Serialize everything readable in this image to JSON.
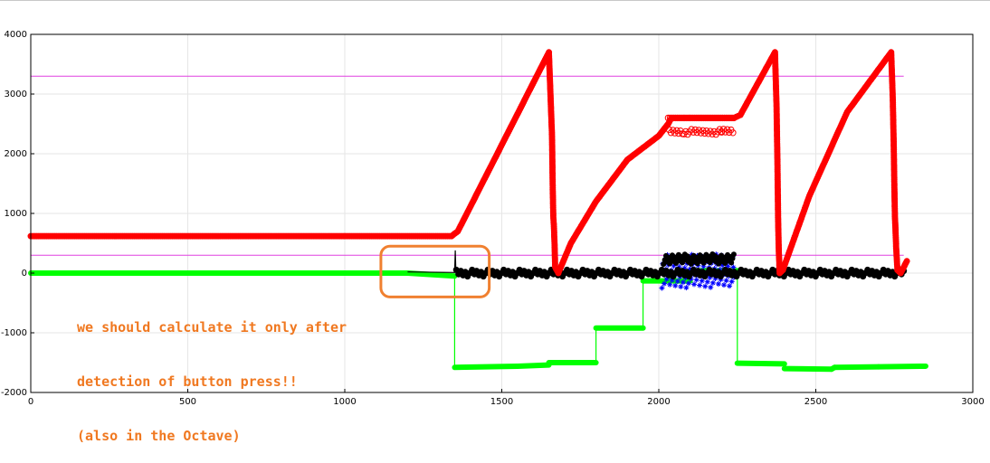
{
  "chart_data": {
    "type": "line",
    "title": "",
    "xlabel": "",
    "ylabel": "",
    "xlim": [
      0,
      3000
    ],
    "ylim": [
      -2000,
      4000
    ],
    "xticks": [
      "0",
      "500",
      "1000",
      "1500",
      "2000",
      "2500",
      "3000"
    ],
    "yticks": [
      "4000",
      "3000",
      "2000",
      "1000",
      "0",
      "-1000",
      "-2000"
    ],
    "grid": true,
    "legend": "none",
    "colors": {
      "red": "#ff0000",
      "green": "#00ff00",
      "black": "#000000",
      "blue": "#0000ff",
      "magenta": "#e040e0",
      "highlight": "#f08030"
    },
    "hlines": [
      3300,
      300
    ],
    "series": [
      {
        "color": "red",
        "marker": "circle",
        "points": [
          [
            0,
            620
          ],
          [
            1340,
            620
          ],
          [
            1360,
            700
          ],
          [
            1650,
            3700
          ],
          [
            1655,
            3000
          ],
          [
            1660,
            2290
          ],
          [
            1662,
            1500
          ],
          [
            1664,
            960
          ],
          [
            1666,
            780
          ],
          [
            1668,
            500
          ],
          [
            1670,
            100
          ],
          [
            1680,
            0
          ],
          [
            1720,
            500
          ],
          [
            1800,
            1200
          ],
          [
            1900,
            1900
          ],
          [
            2000,
            2300
          ],
          [
            2030,
            2500
          ],
          [
            2040,
            2600
          ],
          [
            2240,
            2600
          ],
          [
            2260,
            2650
          ],
          [
            2370,
            3700
          ],
          [
            2375,
            2800
          ],
          [
            2378,
            1800
          ],
          [
            2380,
            900
          ],
          [
            2382,
            400
          ],
          [
            2385,
            0
          ],
          [
            2395,
            50
          ],
          [
            2480,
            1300
          ],
          [
            2600,
            2700
          ],
          [
            2740,
            3700
          ],
          [
            2745,
            2950
          ],
          [
            2748,
            2200
          ],
          [
            2750,
            1500
          ],
          [
            2752,
            950
          ],
          [
            2754,
            700
          ],
          [
            2756,
            420
          ],
          [
            2760,
            50
          ],
          [
            2770,
            0
          ],
          [
            2790,
            200
          ]
        ],
        "oscillation": [
          [
            2030,
            2080,
            2600,
            2330
          ],
          [
            2080,
            2200,
            2600,
            2320
          ],
          [
            2200,
            2240,
            2600,
            2330
          ]
        ]
      },
      {
        "color": "green",
        "marker": "line",
        "points": [
          [
            0,
            0
          ],
          [
            1200,
            0
          ],
          [
            1350,
            -50
          ],
          [
            1350,
            -1580
          ],
          [
            1550,
            -1560
          ],
          [
            1650,
            -1540
          ],
          [
            1650,
            -1500
          ],
          [
            1800,
            -1500
          ],
          [
            1800,
            -920
          ],
          [
            1950,
            -920
          ],
          [
            1950,
            -130
          ],
          [
            2100,
            -130
          ],
          [
            2100,
            40
          ],
          [
            2250,
            40
          ],
          [
            2250,
            -1510
          ],
          [
            2400,
            -1520
          ],
          [
            2400,
            -1600
          ],
          [
            2550,
            -1610
          ],
          [
            2560,
            -1580
          ],
          [
            2700,
            -1570
          ],
          [
            2850,
            -1560
          ]
        ]
      },
      {
        "color": "black",
        "marker": "circle",
        "points": [
          [
            1200,
            20
          ],
          [
            1350,
            10
          ],
          [
            1352,
            380
          ],
          [
            1354,
            10
          ],
          [
            2000,
            0
          ],
          [
            2780,
            0
          ]
        ]
      },
      {
        "color": "blue",
        "marker": "star",
        "range": [
          [
            2010,
            2240
          ],
          [
            -250,
            320
          ]
        ]
      }
    ],
    "annotation": {
      "lines": [
        "we should calculate it only after",
        "detection of button press!!",
        "(also in the Octave)"
      ],
      "box_x": [
        1115,
        1460
      ],
      "box_y": [
        -400,
        450
      ]
    }
  }
}
